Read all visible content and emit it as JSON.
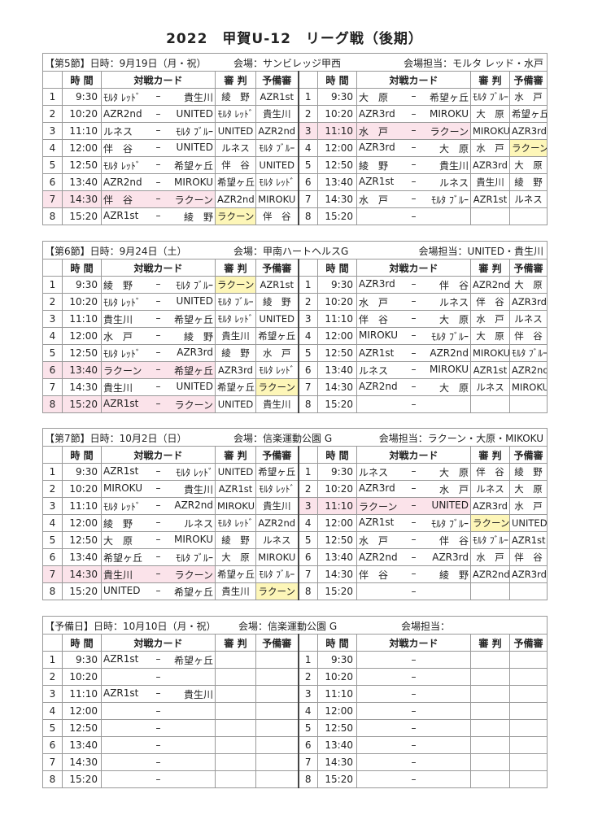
{
  "title": "2022　甲賀U-12　リーグ戦（後期）",
  "columns": {
    "time": "時 間",
    "card": "対戦カード",
    "ref": "審 判",
    "sub": "予備審",
    "dash": "–"
  },
  "colors": {
    "highlight_match": "#fbe3ea",
    "highlight_ref": "#fdf6b8"
  },
  "sections": [
    {
      "date": "【第5節】日時：9月19日（月・祝）",
      "venue": "会場：サンビレッジ甲西",
      "manager": "会場担当：モルタ レッド・水戸",
      "left": [
        {
          "no": "1",
          "time": "9:30",
          "home": "ﾓﾙﾀ ﾚｯﾄﾞ",
          "away": "貴生川",
          "ref": "綾　野",
          "sub": "AZR1st"
        },
        {
          "no": "2",
          "time": "10:20",
          "home": "AZR2nd",
          "away": "UNITED",
          "ref": "ﾓﾙﾀ ﾚｯﾄﾞ",
          "sub": "貴生川"
        },
        {
          "no": "3",
          "time": "11:10",
          "home": "ルネス",
          "away": "ﾓﾙﾀ ﾌﾞﾙｰ",
          "ref": "UNITED",
          "sub": "AZR2nd"
        },
        {
          "no": "4",
          "time": "12:00",
          "home": "伴　谷",
          "away": "UNITED",
          "ref": "ルネス",
          "sub": "ﾓﾙﾀ ﾌﾞﾙｰ"
        },
        {
          "no": "5",
          "time": "12:50",
          "home": "ﾓﾙﾀ ﾚｯﾄﾞ",
          "away": "希望ヶ丘",
          "ref": "伴　谷",
          "sub": "UNITED"
        },
        {
          "no": "6",
          "time": "13:40",
          "home": "AZR2nd",
          "away": "MIROKU",
          "ref": "希望ヶ丘",
          "sub": "ﾓﾙﾀ ﾚｯﾄﾞ"
        },
        {
          "no": "7",
          "time": "14:30",
          "home": "伴　谷",
          "away": "ラクーン",
          "ref": "AZR2nd",
          "sub": "MIROKU",
          "hl": "match"
        },
        {
          "no": "8",
          "time": "15:20",
          "home": "AZR1st",
          "away": "綾　野",
          "ref": "ラクーン",
          "sub": "伴　谷",
          "hl": "ref"
        }
      ],
      "right": [
        {
          "no": "1",
          "time": "9:30",
          "home": "大　原",
          "away": "希望ヶ丘",
          "ref": "ﾓﾙﾀ ﾌﾞﾙｰ",
          "sub": "水　戸"
        },
        {
          "no": "2",
          "time": "10:20",
          "home": "AZR3rd",
          "away": "MIROKU",
          "ref": "大　原",
          "sub": "希望ヶ丘"
        },
        {
          "no": "3",
          "time": "11:10",
          "home": "水　戸",
          "away": "ラクーン",
          "ref": "MIROKU",
          "sub": "AZR3rd",
          "hl": "match"
        },
        {
          "no": "4",
          "time": "12:00",
          "home": "AZR3rd",
          "away": "大　原",
          "ref": "水　戸",
          "sub": "ラクーン",
          "hl": "sub"
        },
        {
          "no": "5",
          "time": "12:50",
          "home": "綾　野",
          "away": "貴生川",
          "ref": "AZR3rd",
          "sub": "大　原"
        },
        {
          "no": "6",
          "time": "13:40",
          "home": "AZR1st",
          "away": "ルネス",
          "ref": "貴生川",
          "sub": "綾　野"
        },
        {
          "no": "7",
          "time": "14:30",
          "home": "水　戸",
          "away": "ﾓﾙﾀ ﾌﾞﾙｰ",
          "ref": "AZR1st",
          "sub": "ルネス"
        },
        {
          "no": "8",
          "time": "15:20",
          "home": "",
          "away": "",
          "ref": "",
          "sub": ""
        }
      ]
    },
    {
      "date": "【第6節】日時：9月24日（土）",
      "venue": "会場：甲南ハートヘルスG",
      "manager": "会場担当：UNITED・貴生川",
      "left": [
        {
          "no": "1",
          "time": "9:30",
          "home": "綾　野",
          "away": "ﾓﾙﾀ ﾌﾞﾙｰ",
          "ref": "ラクーン",
          "sub": "AZR1st",
          "hl": "ref"
        },
        {
          "no": "2",
          "time": "10:20",
          "home": "ﾓﾙﾀ ﾚｯﾄﾞ",
          "away": "UNITED",
          "ref": "ﾓﾙﾀ ﾌﾞﾙｰ",
          "sub": "綾　野"
        },
        {
          "no": "3",
          "time": "11:10",
          "home": "貴生川",
          "away": "希望ヶ丘",
          "ref": "ﾓﾙﾀ ﾚｯﾄﾞ",
          "sub": "UNITED"
        },
        {
          "no": "4",
          "time": "12:00",
          "home": "水　戸",
          "away": "綾　野",
          "ref": "貴生川",
          "sub": "希望ヶ丘"
        },
        {
          "no": "5",
          "time": "12:50",
          "home": "ﾓﾙﾀ ﾚｯﾄﾞ",
          "away": "AZR3rd",
          "ref": "綾　野",
          "sub": "水　戸"
        },
        {
          "no": "6",
          "time": "13:40",
          "home": "ラクーン",
          "away": "希望ヶ丘",
          "ref": "AZR3rd",
          "sub": "ﾓﾙﾀ ﾚｯﾄﾞ",
          "hl": "match"
        },
        {
          "no": "7",
          "time": "14:30",
          "home": "貴生川",
          "away": "UNITED",
          "ref": "希望ヶ丘",
          "sub": "ラクーン",
          "hl": "sub"
        },
        {
          "no": "8",
          "time": "15:20",
          "home": "AZR1st",
          "away": "ラクーン",
          "ref": "UNITED",
          "sub": "貴生川",
          "hl": "match"
        }
      ],
      "right": [
        {
          "no": "1",
          "time": "9:30",
          "home": "AZR3rd",
          "away": "伴　谷",
          "ref": "AZR2nd",
          "sub": "大　原"
        },
        {
          "no": "2",
          "time": "10:20",
          "home": "水　戸",
          "away": "ルネス",
          "ref": "伴　谷",
          "sub": "AZR3rd"
        },
        {
          "no": "3",
          "time": "11:10",
          "home": "伴　谷",
          "away": "大　原",
          "ref": "水　戸",
          "sub": "ルネス"
        },
        {
          "no": "4",
          "time": "12:00",
          "home": "MIROKU",
          "away": "ﾓﾙﾀ ﾌﾞﾙｰ",
          "ref": "大　原",
          "sub": "伴　谷"
        },
        {
          "no": "5",
          "time": "12:50",
          "home": "AZR1st",
          "away": "AZR2nd",
          "ref": "MIROKU",
          "sub": "ﾓﾙﾀ ﾌﾞﾙｰ"
        },
        {
          "no": "6",
          "time": "13:40",
          "home": "ルネス",
          "away": "MIROKU",
          "ref": "AZR1st",
          "sub": "AZR2nd"
        },
        {
          "no": "7",
          "time": "14:30",
          "home": "AZR2nd",
          "away": "大　原",
          "ref": "ルネス",
          "sub": "MIROKU"
        },
        {
          "no": "8",
          "time": "15:20",
          "home": "",
          "away": "",
          "ref": "",
          "sub": ""
        }
      ]
    },
    {
      "date": "【第7節】日時：10月2日（日）",
      "venue": "会場：信楽運動公園 G",
      "manager": "会場担当：ラクーン・大原・MIKOKU",
      "left": [
        {
          "no": "1",
          "time": "9:30",
          "home": "AZR1st",
          "away": "ﾓﾙﾀ ﾚｯﾄﾞ",
          "ref": "UNITED",
          "sub": "希望ヶ丘"
        },
        {
          "no": "2",
          "time": "10:20",
          "home": "MIROKU",
          "away": "貴生川",
          "ref": "AZR1st",
          "sub": "ﾓﾙﾀ ﾚｯﾄﾞ"
        },
        {
          "no": "3",
          "time": "11:10",
          "home": "ﾓﾙﾀ ﾚｯﾄﾞ",
          "away": "AZR2nd",
          "ref": "MIROKU",
          "sub": "貴生川"
        },
        {
          "no": "4",
          "time": "12:00",
          "home": "綾　野",
          "away": "ルネス",
          "ref": "ﾓﾙﾀ ﾚｯﾄﾞ",
          "sub": "AZR2nd"
        },
        {
          "no": "5",
          "time": "12:50",
          "home": "大　原",
          "away": "MIROKU",
          "ref": "綾　野",
          "sub": "ルネス"
        },
        {
          "no": "6",
          "time": "13:40",
          "home": "希望ヶ丘",
          "away": "ﾓﾙﾀ ﾌﾞﾙｰ",
          "ref": "大　原",
          "sub": "MIROKU"
        },
        {
          "no": "7",
          "time": "14:30",
          "home": "貴生川",
          "away": "ラクーン",
          "ref": "希望ヶ丘",
          "sub": "ﾓﾙﾀ ﾌﾞﾙｰ",
          "hl": "match"
        },
        {
          "no": "8",
          "time": "15:20",
          "home": "UNITED",
          "away": "希望ヶ丘",
          "ref": "貴生川",
          "sub": "ラクーン",
          "hl": "sub"
        }
      ],
      "right": [
        {
          "no": "1",
          "time": "9:30",
          "home": "ルネス",
          "away": "大　原",
          "ref": "伴　谷",
          "sub": "綾　野"
        },
        {
          "no": "2",
          "time": "10:20",
          "home": "AZR3rd",
          "away": "水　戸",
          "ref": "ルネス",
          "sub": "大　原"
        },
        {
          "no": "3",
          "time": "11:10",
          "home": "ラクーン",
          "away": "UNITED",
          "ref": "AZR3rd",
          "sub": "水　戸",
          "hl": "match"
        },
        {
          "no": "4",
          "time": "12:00",
          "home": "AZR1st",
          "away": "ﾓﾙﾀ ﾌﾞﾙｰ",
          "ref": "ラクーン",
          "sub": "UNITED",
          "hl": "ref"
        },
        {
          "no": "5",
          "time": "12:50",
          "home": "水　戸",
          "away": "伴　谷",
          "ref": "ﾓﾙﾀ ﾌﾞﾙｰ",
          "sub": "AZR1st"
        },
        {
          "no": "6",
          "time": "13:40",
          "home": "AZR2nd",
          "away": "AZR3rd",
          "ref": "水　戸",
          "sub": "伴　谷"
        },
        {
          "no": "7",
          "time": "14:30",
          "home": "伴　谷",
          "away": "綾　野",
          "ref": "AZR2nd",
          "sub": "AZR3rd"
        },
        {
          "no": "8",
          "time": "15:20",
          "home": "",
          "away": "",
          "ref": "",
          "sub": ""
        }
      ]
    },
    {
      "date": "【予備日】日時：10月10日（月・祝）",
      "venue": "会場：信楽運動公園 G",
      "manager": "会場担当：",
      "left": [
        {
          "no": "1",
          "time": "9:30",
          "home": "AZR1st",
          "away": "希望ヶ丘",
          "ref": "",
          "sub": ""
        },
        {
          "no": "2",
          "time": "10:20",
          "home": "",
          "away": "",
          "ref": "",
          "sub": ""
        },
        {
          "no": "3",
          "time": "11:10",
          "home": "AZR1st",
          "away": "貴生川",
          "ref": "",
          "sub": ""
        },
        {
          "no": "4",
          "time": "12:00",
          "home": "",
          "away": "",
          "ref": "",
          "sub": ""
        },
        {
          "no": "5",
          "time": "12:50",
          "home": "",
          "away": "",
          "ref": "",
          "sub": ""
        },
        {
          "no": "6",
          "time": "13:40",
          "home": "",
          "away": "",
          "ref": "",
          "sub": ""
        },
        {
          "no": "7",
          "time": "14:30",
          "home": "",
          "away": "",
          "ref": "",
          "sub": ""
        },
        {
          "no": "8",
          "time": "15:20",
          "home": "",
          "away": "",
          "ref": "",
          "sub": ""
        }
      ],
      "right": [
        {
          "no": "1",
          "time": "9:30",
          "home": "",
          "away": "",
          "ref": "",
          "sub": ""
        },
        {
          "no": "2",
          "time": "10:20",
          "home": "",
          "away": "",
          "ref": "",
          "sub": ""
        },
        {
          "no": "3",
          "time": "11:10",
          "home": "",
          "away": "",
          "ref": "",
          "sub": ""
        },
        {
          "no": "4",
          "time": "12:00",
          "home": "",
          "away": "",
          "ref": "",
          "sub": ""
        },
        {
          "no": "5",
          "time": "12:50",
          "home": "",
          "away": "",
          "ref": "",
          "sub": ""
        },
        {
          "no": "6",
          "time": "13:40",
          "home": "",
          "away": "",
          "ref": "",
          "sub": ""
        },
        {
          "no": "7",
          "time": "14:30",
          "home": "",
          "away": "",
          "ref": "",
          "sub": ""
        },
        {
          "no": "8",
          "time": "15:20",
          "home": "",
          "away": "",
          "ref": "",
          "sub": ""
        }
      ]
    }
  ]
}
